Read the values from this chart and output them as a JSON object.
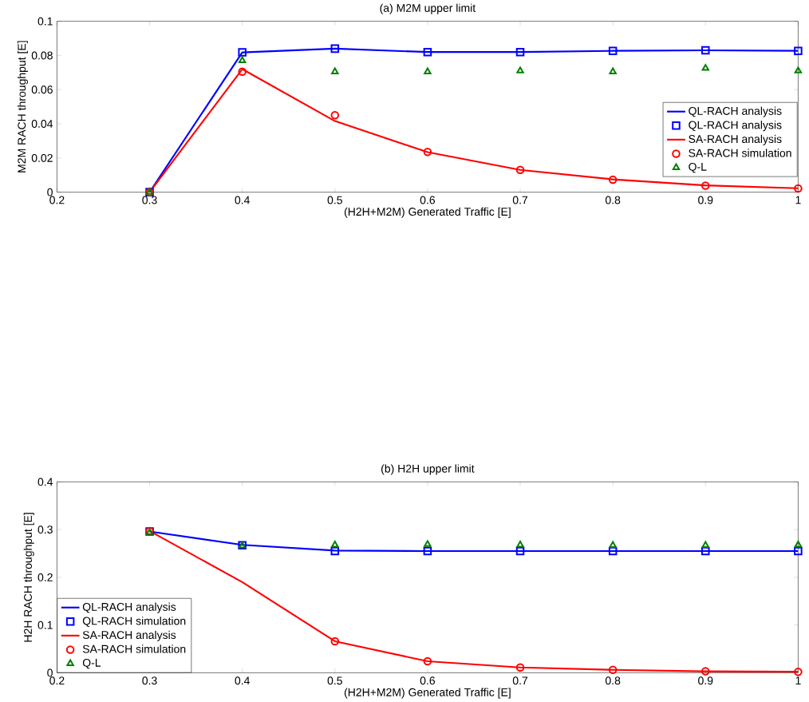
{
  "chart_data": [
    {
      "type": "line",
      "title": "(a) M2M upper limit",
      "xlabel": "(H2H+M2M) Generated Traffic [E]",
      "ylabel": "M2M RACH throughput [E]",
      "x": [
        0.3,
        0.4,
        0.5,
        0.6,
        0.7,
        0.8,
        0.9,
        1.0
      ],
      "xlim": [
        0.2,
        1
      ],
      "xticks": [
        0.2,
        0.3,
        0.4,
        0.5,
        0.6,
        0.7,
        0.8,
        0.9,
        1
      ],
      "ylim": [
        0,
        0.1
      ],
      "yticks": [
        0,
        0.02,
        0.04,
        0.06,
        0.08,
        0.1
      ],
      "grid": false,
      "legend": "bottom right",
      "series": [
        {
          "name": "QL-RACH analysis",
          "type": "line",
          "marker": "none",
          "color": "#0000ff",
          "values": [
            0,
            0.0818,
            0.084,
            0.082,
            0.082,
            0.0827,
            0.083,
            0.0827
          ]
        },
        {
          "name": "QL-RACH analysis",
          "type": "scatter",
          "marker": "square",
          "color": "#0000ff",
          "values": [
            0,
            0.0818,
            0.084,
            0.082,
            0.082,
            0.0827,
            0.083,
            0.0827
          ]
        },
        {
          "name": "SA-RACH analysis",
          "type": "line",
          "marker": "none",
          "color": "#ff0000",
          "values": [
            0,
            0.072,
            0.0416,
            0.0234,
            0.013,
            0.0075,
            0.004,
            0.0023
          ]
        },
        {
          "name": "SA-RACH simulation",
          "type": "scatter",
          "marker": "circle",
          "color": "#ff0000",
          "values": [
            0,
            0.0705,
            0.045,
            0.0235,
            0.013,
            0.0073,
            0.0038,
            0.0022
          ]
        },
        {
          "name": "Q-L",
          "type": "scatter",
          "marker": "triangle",
          "color": "#008000",
          "values": [
            0,
            0.077,
            0.0705,
            0.0705,
            0.071,
            0.0705,
            0.0725,
            0.071
          ]
        }
      ]
    },
    {
      "type": "line",
      "title": "(b) H2H upper limit",
      "xlabel": "(H2H+M2M) Generated Traffic [E]",
      "ylabel": "H2H RACH throughput [E]",
      "x": [
        0.3,
        0.4,
        0.5,
        0.6,
        0.7,
        0.8,
        0.9,
        1.0
      ],
      "xlim": [
        0.2,
        1
      ],
      "xticks": [
        0.2,
        0.3,
        0.4,
        0.5,
        0.6,
        0.7,
        0.8,
        0.9,
        1
      ],
      "ylim": [
        0,
        0.4
      ],
      "yticks": [
        0,
        0.1,
        0.2,
        0.3,
        0.4
      ],
      "grid": false,
      "legend": "bottom left",
      "series": [
        {
          "name": "QL-RACH analysis",
          "type": "line",
          "marker": "none",
          "color": "#0000ff",
          "values": [
            0.296,
            0.268,
            0.256,
            0.255,
            0.255,
            0.255,
            0.255,
            0.255
          ]
        },
        {
          "name": "QL-RACH simulation",
          "type": "scatter",
          "marker": "square",
          "color": "#0000ff",
          "values": [
            0.296,
            0.267,
            0.255,
            0.255,
            0.255,
            0.255,
            0.255,
            0.255
          ]
        },
        {
          "name": "SA-RACH analysis",
          "type": "line",
          "marker": "none",
          "color": "#ff0000",
          "values": [
            0.297,
            0.19,
            0.066,
            0.024,
            0.011,
            0.006,
            0.003,
            0.002
          ]
        },
        {
          "name": "SA-RACH simulation",
          "type": "scatter",
          "marker": "circle",
          "color": "#ff0000",
          "values": [
            0.297,
            null,
            0.066,
            0.024,
            0.011,
            0.006,
            0.003,
            0.002
          ]
        },
        {
          "name": "Q-L",
          "type": "scatter",
          "marker": "triangle",
          "color": "#008000",
          "values": [
            0.294,
            0.266,
            0.268,
            0.269,
            0.268,
            0.267,
            0.267,
            0.268
          ]
        }
      ]
    }
  ]
}
